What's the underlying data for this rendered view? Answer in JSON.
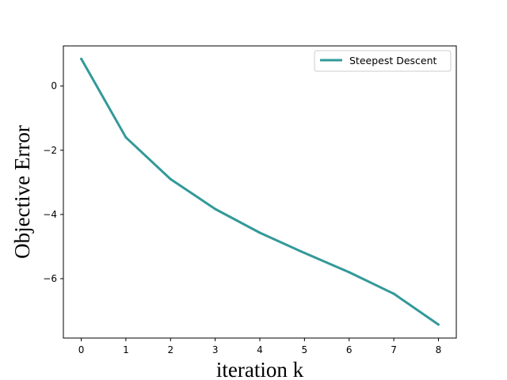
{
  "chart_data": {
    "type": "line",
    "title": "",
    "xlabel": "iteration k",
    "ylabel": "Objective Error",
    "x": [
      0,
      1,
      2,
      3,
      4,
      5,
      6,
      7,
      8
    ],
    "series": [
      {
        "name": "Steepest Descent",
        "color": "#339999",
        "values": [
          0.85,
          -1.6,
          -2.9,
          -3.83,
          -4.57,
          -5.2,
          -5.8,
          -6.47,
          -7.43
        ]
      }
    ],
    "xlim": [
      -0.4,
      8.4
    ],
    "ylim": [
      -7.85,
      1.25
    ],
    "xticks": [
      0,
      1,
      2,
      3,
      4,
      5,
      6,
      7,
      8
    ],
    "yticks": [
      0,
      -2,
      -4,
      -6
    ],
    "ytick_labels": [
      "0",
      "−2",
      "−4",
      "−6"
    ],
    "grid": false,
    "legend_position": "top-right"
  }
}
